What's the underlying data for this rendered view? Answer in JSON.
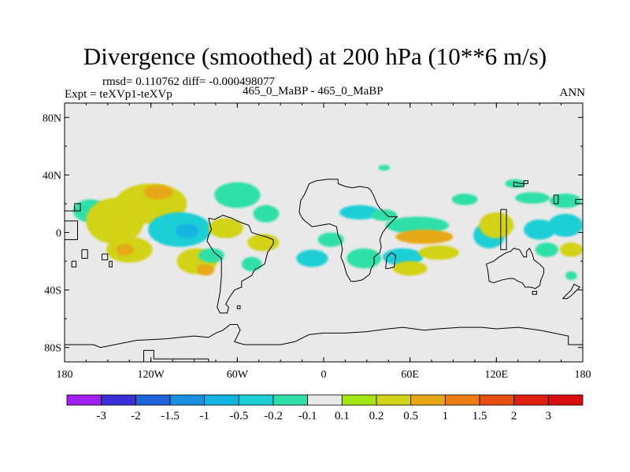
{
  "chart_data": {
    "type": "heatmap",
    "title": "Divergence (smoothed) at 200 hPa (10**6 m/s)",
    "stats": "rmsd= 0.110762 diff= -0.000498077",
    "left_label": "Expt = teXVp1-teXVp",
    "center_label": "465_0_MaBP - 465_0_MaBP",
    "right_label": "ANN",
    "x_range": [
      -180,
      180
    ],
    "y_range": [
      -90,
      90
    ],
    "x_ticks": [
      {
        "value": -180,
        "label": "180"
      },
      {
        "value": -120,
        "label": "120W"
      },
      {
        "value": -60,
        "label": "60W"
      },
      {
        "value": 0,
        "label": "0"
      },
      {
        "value": 60,
        "label": "60E"
      },
      {
        "value": 120,
        "label": "120E"
      },
      {
        "value": 180,
        "label": "180"
      }
    ],
    "y_ticks": [
      {
        "value": 80,
        "label": "80N"
      },
      {
        "value": 40,
        "label": "40N"
      },
      {
        "value": 0,
        "label": "0"
      },
      {
        "value": -40,
        "label": "40S"
      },
      {
        "value": -80,
        "label": "80S"
      }
    ],
    "contour_levels": [
      "-3",
      "-2",
      "-1.5",
      "-1",
      "-0.5",
      "-0.2",
      "-0.1",
      "0.1",
      "0.2",
      "0.5",
      "1",
      "1.5",
      "2",
      "3"
    ],
    "colorbar_colors": [
      "#a020f0",
      "#3a2fd6",
      "#1f62d9",
      "#1a8fe0",
      "#14b4e0",
      "#1ccfd6",
      "#2ee0a8",
      "#e9e9e9",
      "#a6e614",
      "#d2d218",
      "#e6a816",
      "#eb7d14",
      "#e64e12",
      "#e01f0f",
      "#d80c0c"
    ],
    "background_color": "#e9e9e9",
    "anomalies": [
      {
        "lon": -162,
        "lat": 15,
        "dlon": 12,
        "dlat": 8,
        "level": "-0.1"
      },
      {
        "lon": -145,
        "lat": 8,
        "dlon": 20,
        "dlat": 16,
        "level": "0.2"
      },
      {
        "lon": -120,
        "lat": 20,
        "dlon": 25,
        "dlat": 14,
        "level": "0.2"
      },
      {
        "lon": -115,
        "lat": 28,
        "dlon": 10,
        "dlat": 5,
        "level": "0.5"
      },
      {
        "lon": -100,
        "lat": 2,
        "dlon": 22,
        "dlat": 12,
        "level": "-0.2"
      },
      {
        "lon": -95,
        "lat": 1,
        "dlon": 8,
        "dlat": 5,
        "level": "-0.5"
      },
      {
        "lon": -135,
        "lat": -12,
        "dlon": 16,
        "dlat": 9,
        "level": "0.2"
      },
      {
        "lon": -138,
        "lat": -12,
        "dlon": 6,
        "dlat": 4,
        "level": "0.5"
      },
      {
        "lon": -88,
        "lat": -20,
        "dlon": 14,
        "dlat": 9,
        "level": "0.2"
      },
      {
        "lon": -82,
        "lat": -26,
        "dlon": 6,
        "dlat": 4,
        "level": "0.5"
      },
      {
        "lon": -60,
        "lat": 26,
        "dlon": 16,
        "dlat": 9,
        "level": "-0.1"
      },
      {
        "lon": -40,
        "lat": 13,
        "dlon": 9,
        "dlat": 6,
        "level": "-0.1"
      },
      {
        "lon": -68,
        "lat": 3,
        "dlon": 12,
        "dlat": 7,
        "level": "0.2"
      },
      {
        "lon": -42,
        "lat": -7,
        "dlon": 11,
        "dlat": 6,
        "level": "0.2"
      },
      {
        "lon": -78,
        "lat": -16,
        "dlon": 9,
        "dlat": 5,
        "level": "-0.1"
      },
      {
        "lon": -50,
        "lat": -22,
        "dlon": 7,
        "dlat": 5,
        "level": "-0.1"
      },
      {
        "lon": -8,
        "lat": -18,
        "dlon": 11,
        "dlat": 6,
        "level": "-0.2"
      },
      {
        "lon": 5,
        "lat": -5,
        "dlon": 9,
        "dlat": 5,
        "level": "-0.1"
      },
      {
        "lon": 25,
        "lat": 14,
        "dlon": 14,
        "dlat": 5,
        "level": "-0.2"
      },
      {
        "lon": 42,
        "lat": 12,
        "dlon": 9,
        "dlat": 4,
        "level": "-0.1"
      },
      {
        "lon": 42,
        "lat": 45,
        "dlon": 4,
        "dlat": 2,
        "level": "-0.1"
      },
      {
        "lon": 28,
        "lat": -18,
        "dlon": 12,
        "dlat": 7,
        "level": "-0.1"
      },
      {
        "lon": 65,
        "lat": 5,
        "dlon": 22,
        "dlat": 6,
        "level": "-0.1"
      },
      {
        "lon": 70,
        "lat": -3,
        "dlon": 20,
        "dlat": 5,
        "level": "0.5"
      },
      {
        "lon": 55,
        "lat": -17,
        "dlon": 14,
        "dlat": 6,
        "level": "-0.2"
      },
      {
        "lon": 60,
        "lat": -25,
        "dlon": 12,
        "dlat": 5,
        "level": "0.2"
      },
      {
        "lon": 80,
        "lat": -14,
        "dlon": 14,
        "dlat": 5,
        "level": "0.2"
      },
      {
        "lon": 98,
        "lat": 23,
        "dlon": 9,
        "dlat": 4,
        "level": "-0.1"
      },
      {
        "lon": 115,
        "lat": -2,
        "dlon": 11,
        "dlat": 9,
        "level": "-0.2"
      },
      {
        "lon": 120,
        "lat": 5,
        "dlon": 12,
        "dlat": 9,
        "level": "0.2"
      },
      {
        "lon": 145,
        "lat": 24,
        "dlon": 12,
        "dlat": 4,
        "level": "-0.1"
      },
      {
        "lon": 168,
        "lat": 22,
        "dlon": 11,
        "dlat": 5,
        "level": "-0.1"
      },
      {
        "lon": 150,
        "lat": 2,
        "dlon": 11,
        "dlat": 7,
        "level": "-0.2"
      },
      {
        "lon": 168,
        "lat": 5,
        "dlon": 12,
        "dlat": 8,
        "level": "-0.2"
      },
      {
        "lon": 155,
        "lat": -12,
        "dlon": 8,
        "dlat": 5,
        "level": "-0.1"
      },
      {
        "lon": 172,
        "lat": -12,
        "dlon": 8,
        "dlat": 5,
        "level": "0.2"
      },
      {
        "lon": 172,
        "lat": -30,
        "dlon": 4,
        "dlat": 3,
        "level": "-0.1"
      },
      {
        "lon": 133,
        "lat": 34,
        "dlon": 7,
        "dlat": 3,
        "level": "-0.1"
      }
    ],
    "coastlines": [
      [
        [
          -180,
          15
        ],
        [
          -173,
          15
        ],
        [
          -173,
          20
        ],
        [
          -169,
          20
        ],
        [
          -169,
          15
        ],
        [
          -180,
          15
        ]
      ],
      [
        [
          -180,
          -5
        ],
        [
          -171,
          -5
        ],
        [
          -171,
          8
        ],
        [
          -180,
          8
        ]
      ],
      [
        [
          -168,
          -12
        ],
        [
          -168,
          -18
        ],
        [
          -164,
          -18
        ],
        [
          -164,
          -12
        ],
        [
          -168,
          -12
        ]
      ],
      [
        [
          -154,
          -15
        ],
        [
          -154,
          -19
        ],
        [
          -150,
          -19
        ],
        [
          -150,
          -15
        ],
        [
          -154,
          -15
        ]
      ],
      [
        [
          -149,
          -20
        ],
        [
          -147,
          -20
        ],
        [
          -147,
          -24
        ],
        [
          -149,
          -24
        ],
        [
          -149,
          -20
        ]
      ],
      [
        [
          -80,
          10
        ],
        [
          -78,
          2
        ],
        [
          -80,
          -2
        ],
        [
          -81,
          -6
        ],
        [
          -76,
          -14
        ],
        [
          -71,
          -18
        ],
        [
          -71,
          -30
        ],
        [
          -72,
          -42
        ],
        [
          -74,
          -52
        ],
        [
          -72,
          -56
        ],
        [
          -67,
          -56
        ],
        [
          -66,
          -52
        ],
        [
          -68,
          -50
        ],
        [
          -66,
          -46
        ],
        [
          -62,
          -40
        ],
        [
          -57,
          -38
        ],
        [
          -57,
          -34
        ],
        [
          -50,
          -30
        ],
        [
          -48,
          -26
        ],
        [
          -41,
          -22
        ],
        [
          -39,
          -14
        ],
        [
          -35,
          -8
        ],
        [
          -35,
          -5
        ],
        [
          -40,
          -3
        ],
        [
          -44,
          -2
        ],
        [
          -50,
          0
        ],
        [
          -52,
          5
        ],
        [
          -55,
          6
        ],
        [
          -60,
          8
        ],
        [
          -64,
          10
        ],
        [
          -70,
          12
        ],
        [
          -76,
          9
        ],
        [
          -80,
          10
        ]
      ],
      [
        [
          -5,
          36
        ],
        [
          -10,
          34
        ],
        [
          -13,
          27
        ],
        [
          -16,
          22
        ],
        [
          -17,
          14
        ],
        [
          -15,
          10
        ],
        [
          -13,
          8
        ],
        [
          -8,
          4
        ],
        [
          -2,
          5
        ],
        [
          4,
          6
        ],
        [
          9,
          4
        ],
        [
          10,
          -2
        ],
        [
          12,
          -6
        ],
        [
          13,
          -12
        ],
        [
          12,
          -17
        ],
        [
          14,
          -22
        ],
        [
          16,
          -29
        ],
        [
          19,
          -34
        ],
        [
          22,
          -34
        ],
        [
          27,
          -33
        ],
        [
          32,
          -29
        ],
        [
          33,
          -25
        ],
        [
          35,
          -22
        ],
        [
          35,
          -17
        ],
        [
          39,
          -14
        ],
        [
          40,
          -10
        ],
        [
          39,
          -5
        ],
        [
          41,
          0
        ],
        [
          44,
          4
        ],
        [
          48,
          8
        ],
        [
          51,
          11
        ],
        [
          45,
          11
        ],
        [
          43,
          13
        ],
        [
          39,
          17
        ],
        [
          37,
          20
        ],
        [
          35,
          25
        ],
        [
          33,
          29
        ],
        [
          31,
          31
        ],
        [
          25,
          32
        ],
        [
          20,
          31
        ],
        [
          15,
          32
        ],
        [
          10,
          34
        ],
        [
          10,
          37
        ],
        [
          3,
          37
        ],
        [
          -5,
          36
        ]
      ],
      [
        [
          43,
          -25
        ],
        [
          44,
          -17
        ],
        [
          47,
          -14
        ],
        [
          50,
          -16
        ],
        [
          49,
          -24
        ],
        [
          45,
          -25
        ],
        [
          43,
          -25
        ]
      ],
      [
        [
          123,
          16
        ],
        [
          123,
          -12
        ],
        [
          127,
          -12
        ],
        [
          127,
          16
        ],
        [
          123,
          16
        ]
      ],
      [
        [
          113,
          -22
        ],
        [
          114,
          -26
        ],
        [
          115,
          -34
        ],
        [
          118,
          -35
        ],
        [
          124,
          -33
        ],
        [
          129,
          -32
        ],
        [
          132,
          -32
        ],
        [
          135,
          -34
        ],
        [
          138,
          -35
        ],
        [
          140,
          -38
        ],
        [
          144,
          -38
        ],
        [
          147,
          -39
        ],
        [
          150,
          -37
        ],
        [
          151,
          -33
        ],
        [
          153,
          -28
        ],
        [
          153,
          -25
        ],
        [
          150,
          -22
        ],
        [
          146,
          -19
        ],
        [
          145,
          -15
        ],
        [
          143,
          -11
        ],
        [
          141,
          -13
        ],
        [
          141,
          -17
        ],
        [
          139,
          -17
        ],
        [
          136,
          -12
        ],
        [
          132,
          -11
        ],
        [
          130,
          -13
        ],
        [
          127,
          -14
        ],
        [
          122,
          -17
        ],
        [
          118,
          -20
        ],
        [
          113,
          -22
        ]
      ],
      [
        [
          145,
          -41
        ],
        [
          148,
          -41
        ],
        [
          148,
          -43
        ],
        [
          145,
          -43
        ],
        [
          145,
          -41
        ]
      ],
      [
        [
          166,
          -46
        ],
        [
          172,
          -40
        ],
        [
          174,
          -36
        ],
        [
          178,
          -38
        ],
        [
          176,
          -40
        ],
        [
          172,
          -44
        ],
        [
          169,
          -46
        ],
        [
          166,
          -46
        ]
      ],
      [
        [
          132,
          35
        ],
        [
          132,
          32
        ],
        [
          139,
          32
        ],
        [
          139,
          36
        ],
        [
          142,
          36
        ],
        [
          142,
          34
        ],
        [
          137,
          34
        ],
        [
          132,
          35
        ]
      ],
      [
        [
          160,
          20
        ],
        [
          163,
          20
        ],
        [
          163,
          26
        ],
        [
          160,
          26
        ],
        [
          160,
          20
        ]
      ],
      [
        [
          175,
          23
        ],
        [
          180,
          23
        ],
        [
          180,
          20
        ],
        [
          175,
          20
        ],
        [
          175,
          23
        ]
      ],
      [
        [
          -175,
          -20
        ],
        [
          -172,
          -20
        ],
        [
          -172,
          -24
        ],
        [
          -175,
          -24
        ],
        [
          -175,
          -20
        ]
      ],
      [
        [
          -60,
          -51
        ],
        [
          -58,
          -51
        ],
        [
          -58,
          -53
        ],
        [
          -60,
          -53
        ],
        [
          -60,
          -51
        ]
      ],
      [
        [
          -180,
          -78
        ],
        [
          -170,
          -78
        ],
        [
          -160,
          -78
        ],
        [
          -155,
          -80
        ],
        [
          -140,
          -77
        ],
        [
          -130,
          -75
        ],
        [
          -110,
          -74
        ],
        [
          -100,
          -73
        ],
        [
          -90,
          -72
        ],
        [
          -80,
          -73
        ],
        [
          -75,
          -70
        ],
        [
          -70,
          -68
        ],
        [
          -65,
          -64
        ],
        [
          -60,
          -64
        ],
        [
          -58,
          -68
        ],
        [
          -60,
          -72
        ],
        [
          -62,
          -76
        ],
        [
          -55,
          -78
        ],
        [
          -40,
          -78
        ],
        [
          -30,
          -78
        ],
        [
          -20,
          -76
        ],
        [
          -10,
          -71
        ],
        [
          0,
          -70
        ],
        [
          15,
          -70
        ],
        [
          30,
          -69
        ],
        [
          45,
          -67
        ],
        [
          55,
          -66
        ],
        [
          70,
          -68
        ],
        [
          80,
          -67
        ],
        [
          95,
          -66
        ],
        [
          110,
          -66
        ],
        [
          120,
          -67
        ],
        [
          135,
          -66
        ],
        [
          150,
          -68
        ],
        [
          160,
          -70
        ],
        [
          170,
          -72
        ],
        [
          170,
          -78
        ],
        [
          180,
          -78
        ]
      ],
      [
        [
          -125,
          -90
        ],
        [
          -125,
          -82
        ],
        [
          -118,
          -82
        ],
        [
          -118,
          -88
        ],
        [
          -80,
          -88
        ],
        [
          -80,
          -90
        ]
      ]
    ]
  }
}
